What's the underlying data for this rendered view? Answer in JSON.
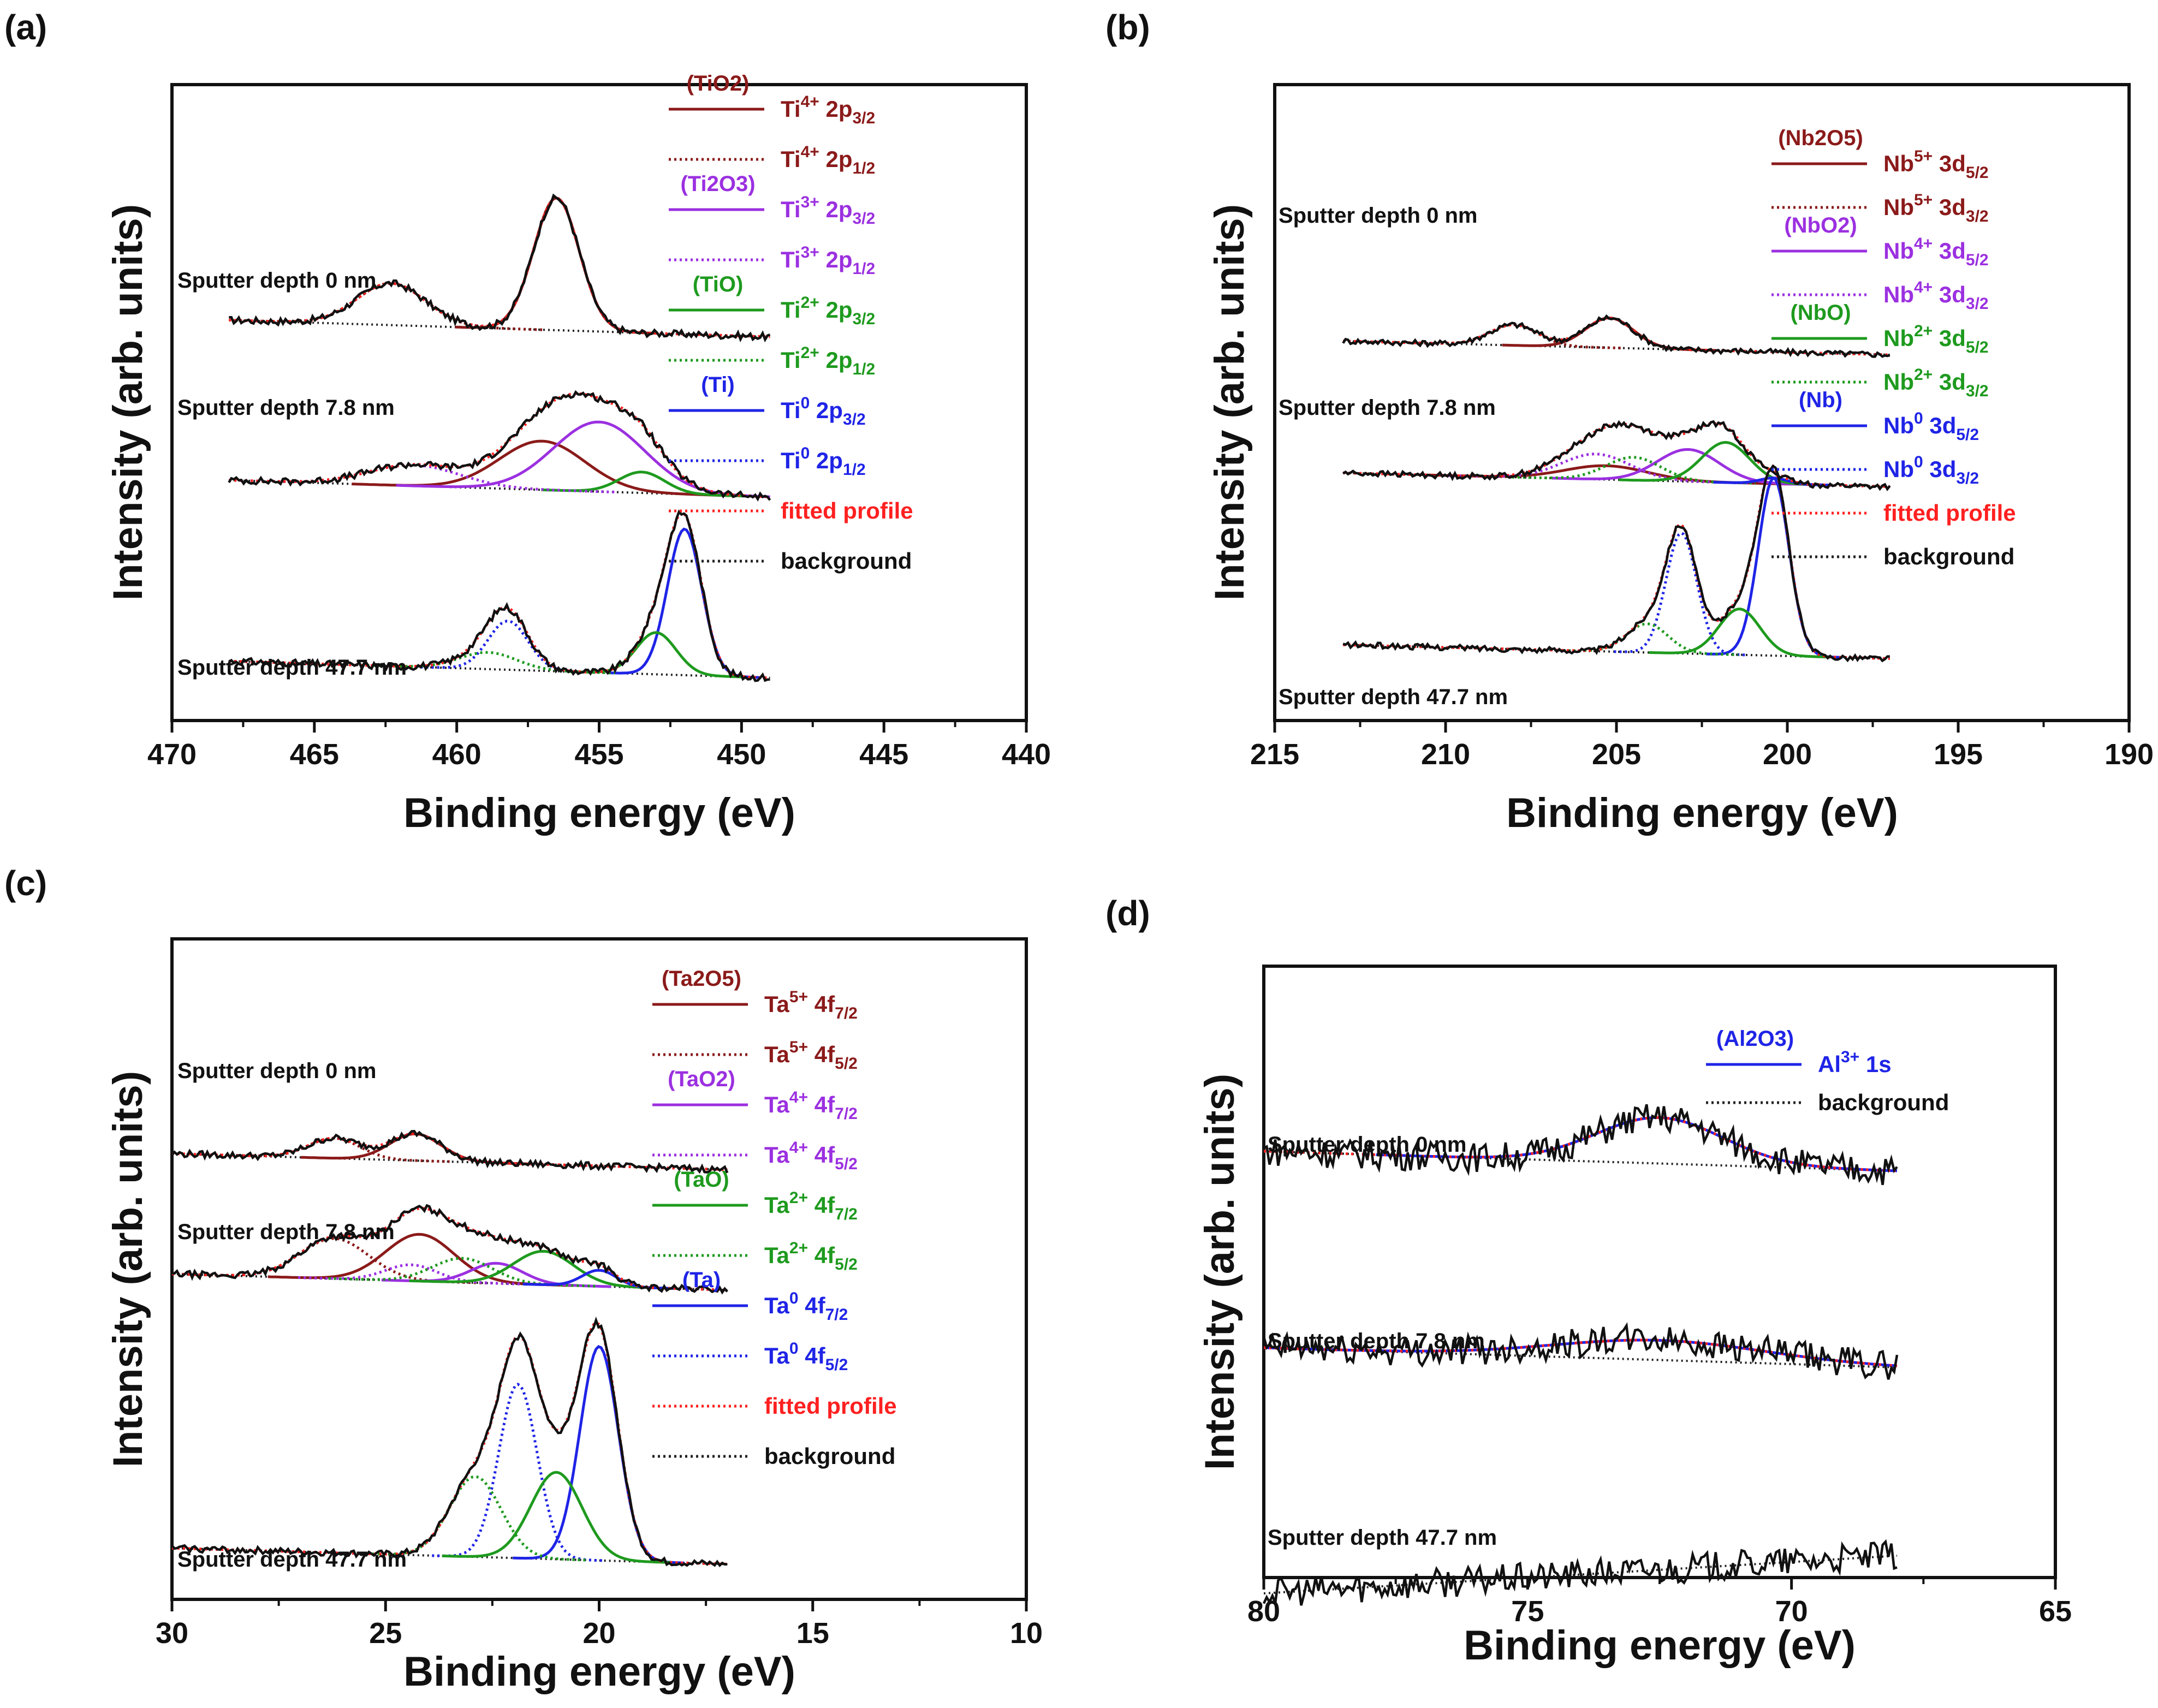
{
  "figure": {
    "colors": {
      "red_brown": "#8b1a1a",
      "purple": "#9b30e0",
      "green": "#1e9a1e",
      "blue": "#1f24e6",
      "fitted": "#ff2020",
      "background": "#222222",
      "data": "#111111"
    }
  },
  "chart_data": [
    {
      "panel_id": "(a)",
      "type": "line",
      "xlabel": "Binding energy (eV)",
      "ylabel": "Intensity (arb. units)",
      "xlim": [
        470,
        440
      ],
      "xticks": [
        470,
        465,
        460,
        455,
        450,
        445,
        440
      ],
      "depth_labels": [
        "Sputter depth 0 nm",
        "Sputter depth 7.8 nm",
        "Sputter depth 47.7 nm"
      ],
      "legend": [
        {
          "group": "(TiO2)",
          "base": "Ti",
          "sup": "4+",
          "orb": "2p",
          "sub": "3/2",
          "style": "solid",
          "color": "red_brown"
        },
        {
          "group": "",
          "base": "Ti",
          "sup": "4+",
          "orb": "2p",
          "sub": "1/2",
          "style": "dotted",
          "color": "red_brown"
        },
        {
          "group": "(Ti2O3)",
          "base": "Ti",
          "sup": "3+",
          "orb": "2p",
          "sub": "3/2",
          "style": "solid",
          "color": "purple"
        },
        {
          "group": "",
          "base": "Ti",
          "sup": "3+",
          "orb": "2p",
          "sub": "1/2",
          "style": "dotted",
          "color": "purple"
        },
        {
          "group": "(TiO)",
          "base": "Ti",
          "sup": "2+",
          "orb": "2p",
          "sub": "3/2",
          "style": "solid",
          "color": "green"
        },
        {
          "group": "",
          "base": "Ti",
          "sup": "2+",
          "orb": "2p",
          "sub": "1/2",
          "style": "dotted",
          "color": "green"
        },
        {
          "group": "(Ti)",
          "base": "Ti",
          "sup": "0",
          "orb": "2p",
          "sub": "3/2",
          "style": "solid",
          "color": "blue"
        },
        {
          "group": "",
          "base": "Ti",
          "sup": "0",
          "orb": "2p",
          "sub": "1/2",
          "style": "dotted",
          "color": "blue"
        },
        {
          "group": "",
          "base": "fitted profile",
          "sup": "",
          "orb": "",
          "sub": "",
          "style": "dotted",
          "color": "fitted"
        },
        {
          "group": "",
          "base": "background",
          "sup": "",
          "orb": "",
          "sub": "",
          "style": "dotted",
          "color": "background"
        }
      ],
      "spectra": [
        {
          "depth": "0 nm",
          "range": [
            468,
            449
          ],
          "offset": 2.6,
          "peaks": [
            {
              "c": 456.5,
              "a": 0.95,
              "w": 0.8,
              "color": "red_brown"
            },
            {
              "c": 462.3,
              "a": 0.3,
              "w": 1.2,
              "color": "red_brown",
              "dotted": true
            }
          ]
        },
        {
          "depth": "7.8 nm",
          "range": [
            468,
            449
          ],
          "offset": 1.45,
          "peaks": [
            {
              "c": 457.0,
              "a": 0.35,
              "w": 1.5,
              "color": "red_brown"
            },
            {
              "c": 455.0,
              "a": 0.5,
              "w": 1.6,
              "color": "purple"
            },
            {
              "c": 453.5,
              "a": 0.15,
              "w": 0.8,
              "color": "green"
            },
            {
              "c": 461.5,
              "a": 0.15,
              "w": 1.6,
              "color": "purple",
              "dotted": true
            }
          ]
        },
        {
          "depth": "47.7 nm",
          "range": [
            468,
            449
          ],
          "offset": 0.15,
          "peaks": [
            {
              "c": 452.0,
              "a": 1.05,
              "w": 0.6,
              "color": "blue"
            },
            {
              "c": 458.2,
              "a": 0.35,
              "w": 0.7,
              "color": "blue",
              "dotted": true
            },
            {
              "c": 453.0,
              "a": 0.3,
              "w": 0.7,
              "color": "green"
            },
            {
              "c": 458.9,
              "a": 0.12,
              "w": 1.0,
              "color": "green",
              "dotted": true
            }
          ]
        }
      ]
    },
    {
      "panel_id": "(b)",
      "type": "line",
      "xlabel": "Binding energy (eV)",
      "ylabel": "Intensity (arb. units)",
      "xlim": [
        215,
        190
      ],
      "xticks": [
        215,
        210,
        205,
        200,
        195,
        190
      ],
      "depth_labels": [
        "Sputter depth 0 nm",
        "Sputter depth 7.8 nm",
        "Sputter depth 47.7 nm"
      ],
      "legend": [
        {
          "group": "(Nb2O5)",
          "base": "Nb",
          "sup": "5+",
          "orb": "3d",
          "sub": "5/2",
          "style": "solid",
          "color": "red_brown"
        },
        {
          "group": "",
          "base": "Nb",
          "sup": "5+",
          "orb": "3d",
          "sub": "3/2",
          "style": "dotted",
          "color": "red_brown"
        },
        {
          "group": "(NbO2)",
          "base": "Nb",
          "sup": "4+",
          "orb": "3d",
          "sub": "5/2",
          "style": "solid",
          "color": "purple"
        },
        {
          "group": "",
          "base": "Nb",
          "sup": "4+",
          "orb": "3d",
          "sub": "3/2",
          "style": "dotted",
          "color": "purple"
        },
        {
          "group": "(NbO)",
          "base": "Nb",
          "sup": "2+",
          "orb": "3d",
          "sub": "5/2",
          "style": "solid",
          "color": "green"
        },
        {
          "group": "",
          "base": "Nb",
          "sup": "2+",
          "orb": "3d",
          "sub": "3/2",
          "style": "dotted",
          "color": "green"
        },
        {
          "group": "(Nb)",
          "base": "Nb",
          "sup": "0",
          "orb": "3d",
          "sub": "5/2",
          "style": "solid",
          "color": "blue"
        },
        {
          "group": "",
          "base": "Nb",
          "sup": "0",
          "orb": "3d",
          "sub": "3/2",
          "style": "dotted",
          "color": "blue"
        },
        {
          "group": "",
          "base": "fitted profile",
          "sup": "",
          "orb": "",
          "sub": "",
          "style": "dotted",
          "color": "fitted"
        },
        {
          "group": "",
          "base": "background",
          "sup": "",
          "orb": "",
          "sub": "",
          "style": "dotted",
          "color": "background"
        }
      ],
      "spectra": [
        {
          "depth": "0 nm",
          "range": [
            213,
            197
          ],
          "offset": 3.0,
          "peaks": [
            {
              "c": 205.2,
              "a": 0.26,
              "w": 0.7,
              "color": "red_brown"
            },
            {
              "c": 208.0,
              "a": 0.18,
              "w": 0.7,
              "color": "red_brown",
              "dotted": true
            }
          ]
        },
        {
          "depth": "7.8 nm",
          "range": [
            213,
            197
          ],
          "offset": 1.85,
          "peaks": [
            {
              "c": 205.3,
              "a": 0.12,
              "w": 1.2,
              "color": "red_brown"
            },
            {
              "c": 205.6,
              "a": 0.22,
              "w": 1.0,
              "color": "purple",
              "dotted": true
            },
            {
              "c": 202.9,
              "a": 0.28,
              "w": 0.9,
              "color": "purple"
            },
            {
              "c": 204.5,
              "a": 0.2,
              "w": 0.8,
              "color": "green",
              "dotted": true
            },
            {
              "c": 201.8,
              "a": 0.35,
              "w": 0.7,
              "color": "green"
            },
            {
              "c": 200.4,
              "a": 0.05,
              "w": 0.4,
              "color": "blue"
            }
          ]
        },
        {
          "depth": "47.7 nm",
          "range": [
            213,
            197
          ],
          "offset": 0.35,
          "peaks": [
            {
              "c": 200.4,
              "a": 1.55,
              "w": 0.45,
              "color": "blue"
            },
            {
              "c": 203.1,
              "a": 1.05,
              "w": 0.45,
              "color": "blue",
              "dotted": true
            },
            {
              "c": 201.4,
              "a": 0.4,
              "w": 0.6,
              "color": "green"
            },
            {
              "c": 204.1,
              "a": 0.25,
              "w": 0.6,
              "color": "green",
              "dotted": true
            }
          ]
        }
      ]
    },
    {
      "panel_id": "(c)",
      "type": "line",
      "xlabel": "Binding energy (eV)",
      "ylabel": "Intensity (arb. units)",
      "xlim": [
        30,
        10
      ],
      "xticks": [
        30,
        25,
        20,
        15,
        10
      ],
      "depth_labels": [
        "Sputter depth 0 nm",
        "Sputter depth 7.8 nm",
        "Sputter depth 47.7 nm"
      ],
      "legend": [
        {
          "group": "(Ta2O5)",
          "base": "Ta",
          "sup": "5+",
          "orb": "4f",
          "sub": "7/2",
          "style": "solid",
          "color": "red_brown"
        },
        {
          "group": "",
          "base": "Ta",
          "sup": "5+",
          "orb": "4f",
          "sub": "5/2",
          "style": "dotted",
          "color": "red_brown"
        },
        {
          "group": "(TaO2)",
          "base": "Ta",
          "sup": "4+",
          "orb": "4f",
          "sub": "7/2",
          "style": "solid",
          "color": "purple"
        },
        {
          "group": "",
          "base": "Ta",
          "sup": "4+",
          "orb": "4f",
          "sub": "5/2",
          "style": "dotted",
          "color": "purple"
        },
        {
          "group": "(TaO)",
          "base": "Ta",
          "sup": "2+",
          "orb": "4f",
          "sub": "7/2",
          "style": "solid",
          "color": "green"
        },
        {
          "group": "",
          "base": "Ta",
          "sup": "2+",
          "orb": "4f",
          "sub": "5/2",
          "style": "dotted",
          "color": "green"
        },
        {
          "group": "(Ta)",
          "base": "Ta",
          "sup": "0",
          "orb": "4f",
          "sub": "7/2",
          "style": "solid",
          "color": "blue"
        },
        {
          "group": "",
          "base": "Ta",
          "sup": "0",
          "orb": "4f",
          "sub": "5/2",
          "style": "dotted",
          "color": "blue"
        },
        {
          "group": "",
          "base": "fitted profile",
          "sup": "",
          "orb": "",
          "sub": "",
          "style": "dotted",
          "color": "fitted"
        },
        {
          "group": "",
          "base": "background",
          "sup": "",
          "orb": "",
          "sub": "",
          "style": "dotted",
          "color": "background"
        }
      ],
      "spectra": [
        {
          "depth": "0 nm",
          "range": [
            30,
            17
          ],
          "offset": 3.05,
          "peaks": [
            {
              "c": 24.3,
              "a": 0.2,
              "w": 0.6,
              "color": "red_brown"
            },
            {
              "c": 26.2,
              "a": 0.15,
              "w": 0.6,
              "color": "red_brown",
              "dotted": true
            }
          ]
        },
        {
          "depth": "7.8 nm",
          "range": [
            30,
            17
          ],
          "offset": 2.15,
          "peaks": [
            {
              "c": 24.2,
              "a": 0.35,
              "w": 0.8,
              "color": "red_brown"
            },
            {
              "c": 26.2,
              "a": 0.3,
              "w": 0.8,
              "color": "red_brown",
              "dotted": true
            },
            {
              "c": 22.4,
              "a": 0.15,
              "w": 0.6,
              "color": "purple"
            },
            {
              "c": 24.4,
              "a": 0.12,
              "w": 0.6,
              "color": "purple",
              "dotted": true
            },
            {
              "c": 21.3,
              "a": 0.25,
              "w": 0.7,
              "color": "green"
            },
            {
              "c": 23.2,
              "a": 0.18,
              "w": 0.7,
              "color": "green",
              "dotted": true
            },
            {
              "c": 20.0,
              "a": 0.12,
              "w": 0.4,
              "color": "blue"
            }
          ]
        },
        {
          "depth": "47.7 nm",
          "range": [
            30,
            17
          ],
          "offset": 0.1,
          "peaks": [
            {
              "c": 20.0,
              "a": 1.6,
              "w": 0.45,
              "color": "blue"
            },
            {
              "c": 21.9,
              "a": 1.3,
              "w": 0.45,
              "color": "blue",
              "dotted": true
            },
            {
              "c": 21.0,
              "a": 0.65,
              "w": 0.6,
              "color": "green"
            },
            {
              "c": 22.9,
              "a": 0.6,
              "w": 0.6,
              "color": "green",
              "dotted": true
            }
          ]
        }
      ]
    },
    {
      "panel_id": "(d)",
      "type": "line",
      "xlabel": "Binding energy (eV)",
      "ylabel": "Intensity (arb. units)",
      "xlim": [
        80,
        65
      ],
      "xticks": [
        80,
        75,
        70,
        65
      ],
      "depth_labels": [
        "Sputter depth 0 nm",
        "Sputter depth 7.8 nm",
        "Sputter depth 47.7 nm"
      ],
      "legend": [
        {
          "group": "(Al2O3)",
          "base": "Al",
          "sup": "3+",
          "orb": "1s",
          "sub": "",
          "style": "solid",
          "color": "blue"
        },
        {
          "group": "",
          "base": "background",
          "sup": "",
          "orb": "",
          "sub": "",
          "style": "dotted",
          "color": "background"
        }
      ],
      "spectra": [
        {
          "depth": "0 nm",
          "range": [
            80,
            68
          ],
          "offset": 2.35,
          "noise": 0.09,
          "peaks": [
            {
              "c": 72.5,
              "a": 0.28,
              "w": 1.2,
              "color": "blue"
            }
          ]
        },
        {
          "depth": "7.8 nm",
          "range": [
            80,
            68
          ],
          "offset": 1.15,
          "noise": 0.09,
          "peaks": [
            {
              "c": 72.5,
              "a": 0.12,
              "w": 2.0,
              "color": "blue"
            }
          ]
        },
        {
          "depth": "47.7 nm",
          "range": [
            80,
            68
          ],
          "offset": 0.0,
          "noise": 0.09,
          "slope": 0.35,
          "peaks": []
        }
      ]
    }
  ]
}
